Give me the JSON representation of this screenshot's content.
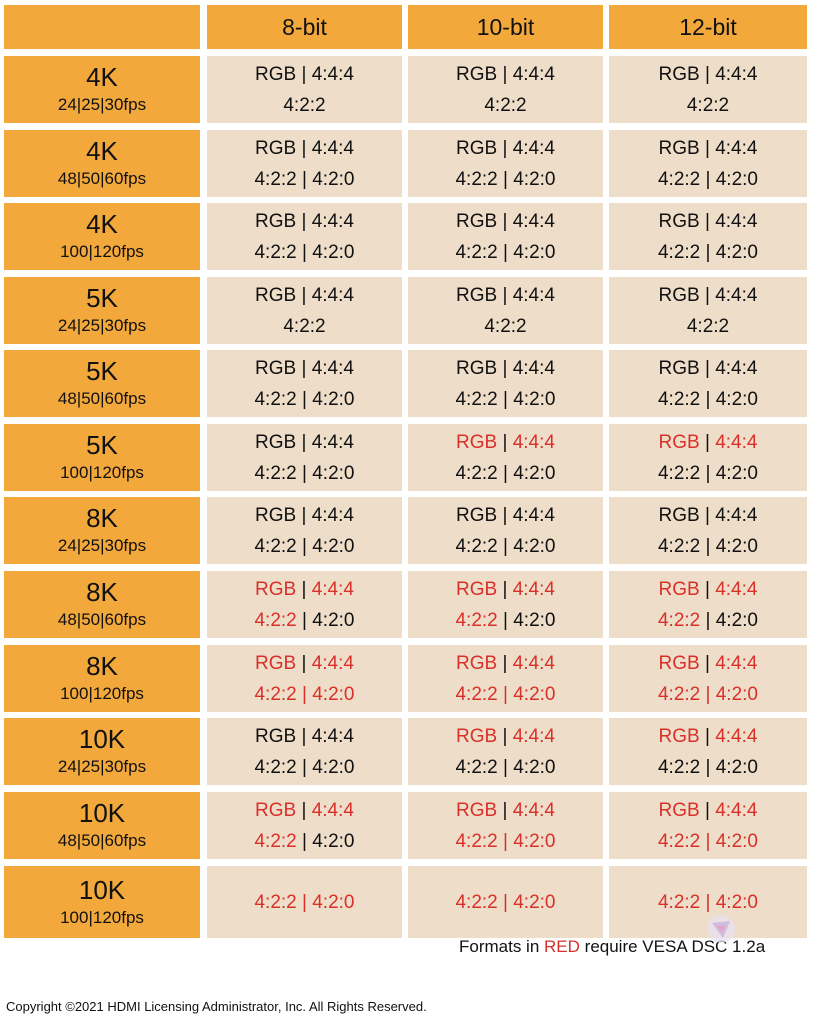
{
  "columns": [
    "8-bit",
    "10-bit",
    "12-bit"
  ],
  "rows": [
    {
      "res": "4K",
      "fps": "24|25|30fps",
      "cells": [
        [
          [
            [
              "RGB | 4:4:4",
              "k"
            ]
          ],
          [
            [
              "4:2:2",
              "k"
            ]
          ]
        ],
        [
          [
            [
              "RGB | 4:4:4",
              "k"
            ]
          ],
          [
            [
              "4:2:2",
              "k"
            ]
          ]
        ],
        [
          [
            [
              "RGB | 4:4:4",
              "k"
            ]
          ],
          [
            [
              "4:2:2",
              "k"
            ]
          ]
        ]
      ]
    },
    {
      "res": "4K",
      "fps": "48|50|60fps",
      "cells": [
        [
          [
            [
              "RGB | 4:4:4",
              "k"
            ]
          ],
          [
            [
              "4:2:2 | 4:2:0",
              "k"
            ]
          ]
        ],
        [
          [
            [
              "RGB | 4:4:4",
              "k"
            ]
          ],
          [
            [
              "4:2:2 | 4:2:0",
              "k"
            ]
          ]
        ],
        [
          [
            [
              "RGB | 4:4:4",
              "k"
            ]
          ],
          [
            [
              "4:2:2 | 4:2:0",
              "k"
            ]
          ]
        ]
      ]
    },
    {
      "res": "4K",
      "fps": "100|120fps",
      "cells": [
        [
          [
            [
              "RGB | 4:4:4",
              "k"
            ]
          ],
          [
            [
              "4:2:2 | 4:2:0",
              "k"
            ]
          ]
        ],
        [
          [
            [
              "RGB | 4:4:4",
              "k"
            ]
          ],
          [
            [
              "4:2:2 | 4:2:0",
              "k"
            ]
          ]
        ],
        [
          [
            [
              "RGB | 4:4:4",
              "k"
            ]
          ],
          [
            [
              "4:2:2 | 4:2:0",
              "k"
            ]
          ]
        ]
      ]
    },
    {
      "res": "5K",
      "fps": "24|25|30fps",
      "cells": [
        [
          [
            [
              "RGB | 4:4:4",
              "k"
            ]
          ],
          [
            [
              "4:2:2",
              "k"
            ]
          ]
        ],
        [
          [
            [
              "RGB | 4:4:4",
              "k"
            ]
          ],
          [
            [
              "4:2:2",
              "k"
            ]
          ]
        ],
        [
          [
            [
              "RGB | 4:4:4",
              "k"
            ]
          ],
          [
            [
              "4:2:2",
              "k"
            ]
          ]
        ]
      ]
    },
    {
      "res": "5K",
      "fps": "48|50|60fps",
      "cells": [
        [
          [
            [
              "RGB | 4:4:4",
              "k"
            ]
          ],
          [
            [
              "4:2:2 | 4:2:0",
              "k"
            ]
          ]
        ],
        [
          [
            [
              "RGB | 4:4:4",
              "k"
            ]
          ],
          [
            [
              "4:2:2 | 4:2:0",
              "k"
            ]
          ]
        ],
        [
          [
            [
              "RGB | 4:4:4",
              "k"
            ]
          ],
          [
            [
              "4:2:2 | 4:2:0",
              "k"
            ]
          ]
        ]
      ]
    },
    {
      "res": "5K",
      "fps": "100|120fps",
      "cells": [
        [
          [
            [
              "RGB | 4:4:4",
              "k"
            ]
          ],
          [
            [
              "4:2:2 | 4:2:0",
              "k"
            ]
          ]
        ],
        [
          [
            [
              "RGB",
              "r"
            ],
            [
              " | ",
              "k"
            ],
            [
              "4:4:4",
              "r"
            ]
          ],
          [
            [
              "4:2:2 | 4:2:0",
              "k"
            ]
          ]
        ],
        [
          [
            [
              "RGB",
              "r"
            ],
            [
              " | ",
              "k"
            ],
            [
              "4:4:4",
              "r"
            ]
          ],
          [
            [
              "4:2:2 | 4:2:0",
              "k"
            ]
          ]
        ]
      ]
    },
    {
      "res": "8K",
      "fps": "24|25|30fps",
      "cells": [
        [
          [
            [
              "RGB | 4:4:4",
              "k"
            ]
          ],
          [
            [
              "4:2:2 | 4:2:0",
              "k"
            ]
          ]
        ],
        [
          [
            [
              "RGB | 4:4:4",
              "k"
            ]
          ],
          [
            [
              "4:2:2 | 4:2:0",
              "k"
            ]
          ]
        ],
        [
          [
            [
              "RGB | 4:4:4",
              "k"
            ]
          ],
          [
            [
              "4:2:2 | 4:2:0",
              "k"
            ]
          ]
        ]
      ]
    },
    {
      "res": "8K",
      "fps": "48|50|60fps",
      "cells": [
        [
          [
            [
              "RGB",
              "r"
            ],
            [
              " | ",
              "k"
            ],
            [
              "4:4:4",
              "r"
            ]
          ],
          [
            [
              "4:2:2",
              "r"
            ],
            [
              " | 4:2:0",
              "k"
            ]
          ]
        ],
        [
          [
            [
              "RGB",
              "r"
            ],
            [
              " | ",
              "k"
            ],
            [
              "4:4:4",
              "r"
            ]
          ],
          [
            [
              "4:2:2",
              "r"
            ],
            [
              " | 4:2:0",
              "k"
            ]
          ]
        ],
        [
          [
            [
              "RGB",
              "r"
            ],
            [
              " | ",
              "k"
            ],
            [
              "4:4:4",
              "r"
            ]
          ],
          [
            [
              "4:2:2",
              "r"
            ],
            [
              " | 4:2:0",
              "k"
            ]
          ]
        ]
      ]
    },
    {
      "res": "8K",
      "fps": "100|120fps",
      "cells": [
        [
          [
            [
              "RGB",
              "r"
            ],
            [
              " | ",
              "k"
            ],
            [
              "4:4:4",
              "r"
            ]
          ],
          [
            [
              "4:2:2 | 4:2:0",
              "r"
            ]
          ]
        ],
        [
          [
            [
              "RGB",
              "r"
            ],
            [
              " | ",
              "k"
            ],
            [
              "4:4:4",
              "r"
            ]
          ],
          [
            [
              "4:2:2 | 4:2:0",
              "r"
            ]
          ]
        ],
        [
          [
            [
              "RGB",
              "r"
            ],
            [
              " | ",
              "k"
            ],
            [
              "4:4:4",
              "r"
            ]
          ],
          [
            [
              "4:2:2 | 4:2:0",
              "r"
            ]
          ]
        ]
      ]
    },
    {
      "res": "10K",
      "fps": "24|25|30fps",
      "cells": [
        [
          [
            [
              "RGB | 4:4:4",
              "k"
            ]
          ],
          [
            [
              "4:2:2 | 4:2:0",
              "k"
            ]
          ]
        ],
        [
          [
            [
              "RGB",
              "r"
            ],
            [
              " | ",
              "k"
            ],
            [
              "4:4:4",
              "r"
            ]
          ],
          [
            [
              "4:2:2 | 4:2:0",
              "k"
            ]
          ]
        ],
        [
          [
            [
              "RGB",
              "r"
            ],
            [
              " | ",
              "k"
            ],
            [
              "4:4:4",
              "r"
            ]
          ],
          [
            [
              "4:2:2 | 4:2:0",
              "k"
            ]
          ]
        ]
      ]
    },
    {
      "res": "10K",
      "fps": "48|50|60fps",
      "cells": [
        [
          [
            [
              "RGB",
              "r"
            ],
            [
              " | ",
              "k"
            ],
            [
              "4:4:4",
              "r"
            ]
          ],
          [
            [
              "4:2:2",
              "r"
            ],
            [
              " | 4:2:0",
              "k"
            ]
          ]
        ],
        [
          [
            [
              "RGB",
              "r"
            ],
            [
              " | ",
              "k"
            ],
            [
              "4:4:4",
              "r"
            ]
          ],
          [
            [
              "4:2:2 | 4:2:0",
              "r"
            ]
          ]
        ],
        [
          [
            [
              "RGB",
              "r"
            ],
            [
              " | ",
              "k"
            ],
            [
              "4:4:4",
              "r"
            ]
          ],
          [
            [
              "4:2:2 | 4:2:0",
              "r"
            ]
          ]
        ]
      ]
    },
    {
      "res": "10K",
      "fps": "100|120fps",
      "cells": [
        [
          [
            [
              "4:2:2 | 4:2:0",
              "r"
            ]
          ]
        ],
        [
          [
            [
              "4:2:2 | 4:2:0",
              "r"
            ]
          ]
        ],
        [
          [
            [
              "4:2:2 | 4:2:0",
              "r"
            ]
          ]
        ]
      ]
    }
  ],
  "footnote": {
    "before": "Formats in ",
    "red": "RED",
    "after": " require VESA DSC 1.2a"
  },
  "copyright": "Copyright ©2021 HDMI Licensing Administrator, Inc. All Rights Reserved.",
  "colors": {
    "header": "#f3a83c",
    "cell": "#eeddc8",
    "red": "#d9302a"
  },
  "watermark_icon": "logo-watermark-icon"
}
